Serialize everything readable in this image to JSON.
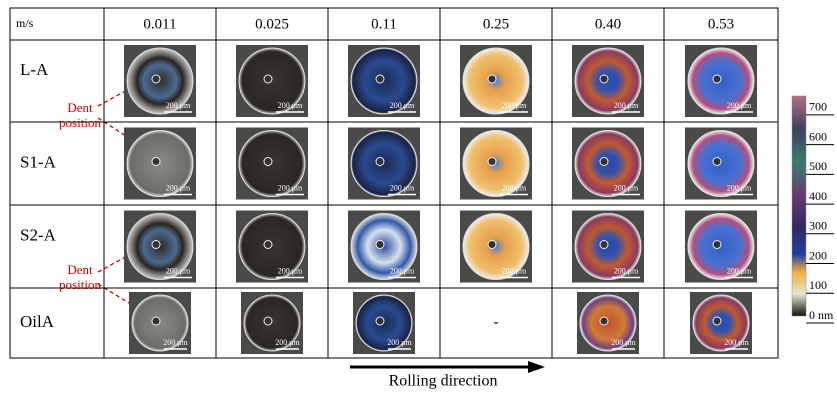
{
  "table": {
    "corner": "m/s",
    "speeds": [
      "0.011",
      "0.025",
      "0.11",
      "0.25",
      "0.40",
      "0.53"
    ],
    "rows": [
      {
        "label": "L-A",
        "cells": [
          null,
          null,
          null,
          null,
          null,
          null
        ]
      },
      {
        "label": "S1-A",
        "cells": [
          null,
          null,
          null,
          null,
          null,
          null
        ]
      },
      {
        "label": "S2-A",
        "cells": [
          null,
          null,
          null,
          null,
          null,
          null
        ]
      },
      {
        "label": "OilA",
        "cells": [
          null,
          null,
          null,
          "-",
          null,
          null
        ]
      }
    ],
    "scale_bar": "200 μm"
  },
  "annotations": {
    "dent": "Dent position",
    "arrow": "Rolling direction"
  },
  "colorbar": {
    "lim": [
      0,
      740
    ],
    "ticks": [
      {
        "value": 0,
        "label": "0 nm"
      },
      100,
      200,
      300,
      400,
      500,
      600,
      700
    ]
  }
}
